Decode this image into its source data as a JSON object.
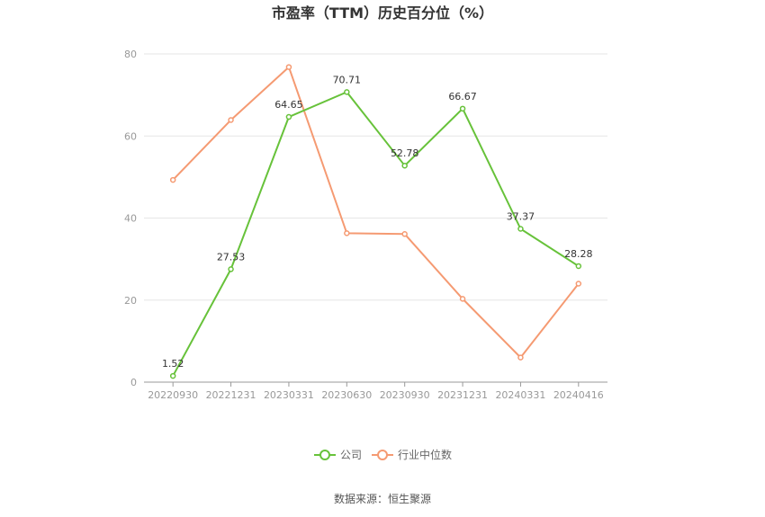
{
  "chart_data": {
    "type": "line",
    "title": "市盈率（TTM）历史百分位（%）",
    "xlabel": "",
    "ylabel": "",
    "ylim": [
      0,
      80
    ],
    "yticks": [
      0,
      20,
      40,
      60,
      80
    ],
    "categories": [
      "20220930",
      "20221231",
      "20230331",
      "20230630",
      "20230930",
      "20231231",
      "20240331",
      "20240416"
    ],
    "series": [
      {
        "name": "公司",
        "color": "#67c23a",
        "values": [
          1.52,
          27.53,
          64.65,
          70.71,
          52.78,
          66.67,
          37.37,
          28.28
        ],
        "labels": [
          "1.52",
          "27.53",
          "64.65",
          "70.71",
          "52.78",
          "66.67",
          "37.37",
          "28.28"
        ]
      },
      {
        "name": "行业中位数",
        "color": "#f59a72",
        "values": [
          49.3,
          63.9,
          76.8,
          36.3,
          36.1,
          20.3,
          6.0,
          24.0
        ]
      }
    ],
    "grid": true,
    "legend_position": "bottom-center",
    "source": "数据来源：恒生聚源"
  }
}
